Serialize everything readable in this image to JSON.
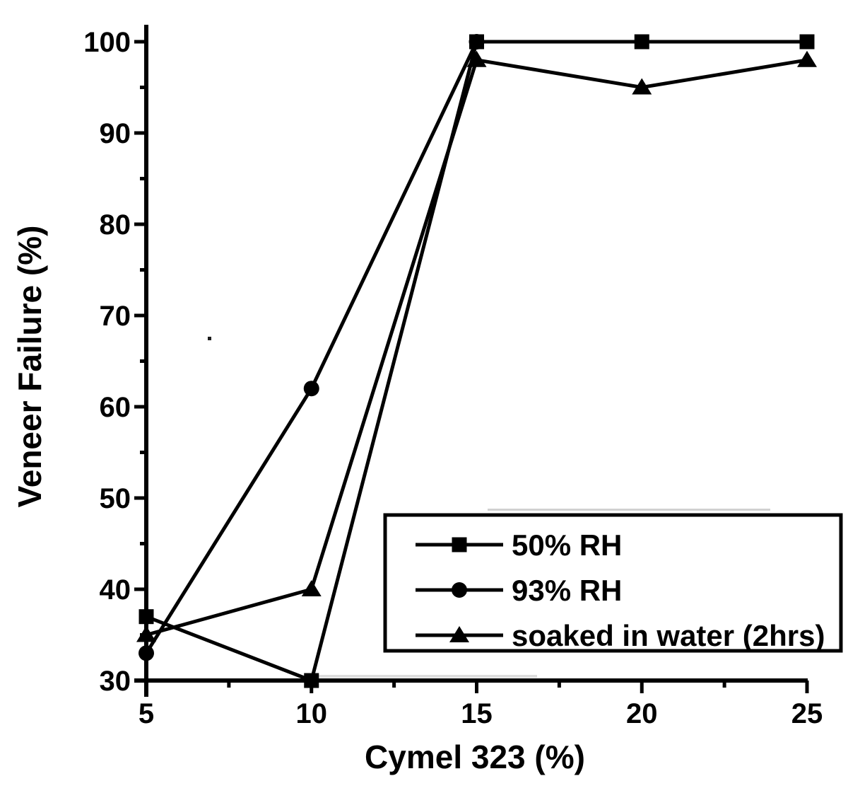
{
  "figure": {
    "background": "#ffffff",
    "ink": "#000000"
  },
  "chart_data": {
    "type": "line",
    "title": "",
    "xlabel": "Cymel 323 (%)",
    "ylabel": "Veneer Failure (%)",
    "xlim": [
      5,
      25
    ],
    "ylim": [
      30,
      100
    ],
    "x_major_ticks": [
      5,
      10,
      15,
      20,
      25
    ],
    "x_minor_ticks": [
      7.5,
      12.5,
      17.5,
      22.5
    ],
    "y_major_ticks": [
      30,
      40,
      50,
      60,
      70,
      80,
      90,
      100
    ],
    "y_minor_ticks": [
      35,
      45,
      55,
      65,
      75,
      85,
      95
    ],
    "grid": false,
    "legend": {
      "position": "inside-lower-right",
      "entries": [
        {
          "label": "50% RH",
          "marker": "square"
        },
        {
          "label": "93% RH",
          "marker": "circle"
        },
        {
          "label": "soaked in water (2hrs)",
          "marker": "triangle"
        }
      ]
    },
    "series": [
      {
        "name": "50% RH",
        "slug": "50-rh",
        "marker": "square",
        "color": "#000000",
        "points": [
          [
            5,
            37
          ],
          [
            10,
            30
          ],
          [
            15,
            100
          ],
          [
            20,
            100
          ],
          [
            25,
            100
          ]
        ]
      },
      {
        "name": "93% RH",
        "slug": "93-rh",
        "marker": "circle",
        "color": "#000000",
        "points": [
          [
            5,
            33
          ],
          [
            10,
            62
          ],
          [
            15,
            100
          ]
        ]
      },
      {
        "name": "soaked in water (2hrs)",
        "slug": "soaked-in-water-2hrs",
        "marker": "triangle",
        "color": "#000000",
        "points": [
          [
            5,
            35
          ],
          [
            10,
            40
          ],
          [
            15,
            98
          ],
          [
            20,
            95
          ],
          [
            25,
            98
          ]
        ]
      }
    ]
  }
}
